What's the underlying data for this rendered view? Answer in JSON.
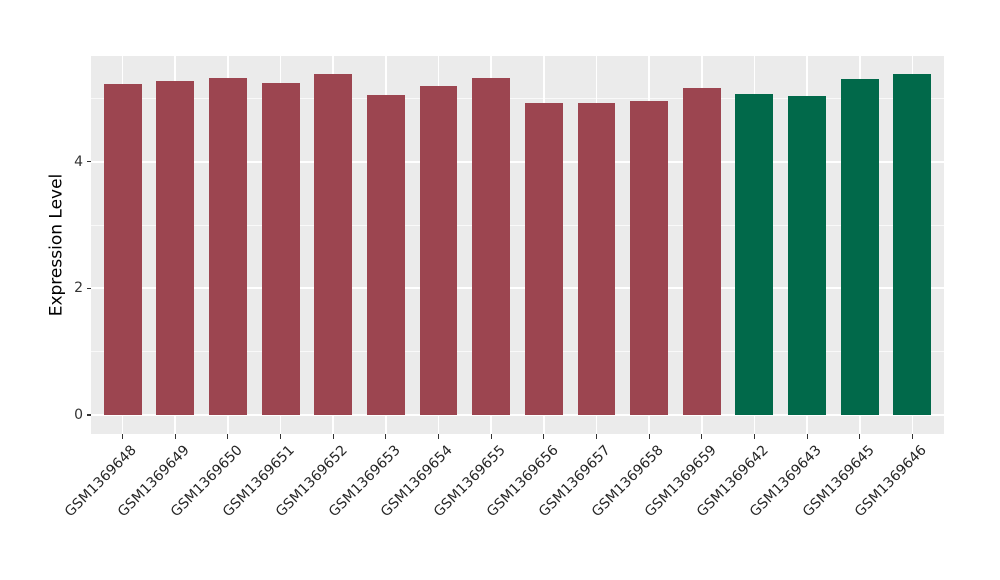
{
  "figure": {
    "background": "#FFFFFF",
    "panel_background": "#EBEBEB",
    "grid_color": "#FFFFFF",
    "axis_text_color": "#333333",
    "axis_title_color": "#000000",
    "tick_mark_color": "#333333"
  },
  "chart_data": {
    "type": "bar",
    "title": "",
    "xlabel": "",
    "ylabel": "Expression Level",
    "categories": [
      "GSM1369648",
      "GSM1369649",
      "GSM1369650",
      "GSM1369651",
      "GSM1369652",
      "GSM1369653",
      "GSM1369654",
      "GSM1369655",
      "GSM1369656",
      "GSM1369657",
      "GSM1369658",
      "GSM1369659",
      "GSM1369642",
      "GSM1369643",
      "GSM1369645",
      "GSM1369646"
    ],
    "values": [
      5.22,
      5.28,
      5.33,
      5.25,
      5.39,
      5.06,
      5.19,
      5.33,
      4.92,
      4.92,
      4.96,
      5.16,
      5.07,
      5.04,
      5.31,
      5.39
    ],
    "bar_groups": [
      0,
      0,
      0,
      0,
      0,
      0,
      0,
      0,
      0,
      0,
      0,
      0,
      1,
      1,
      1,
      1
    ],
    "group_colors": [
      "#9C4550",
      "#01694A"
    ],
    "ylim": [
      -0.3,
      5.67
    ],
    "yticks": [
      0,
      2,
      4
    ],
    "minor_yticks": [
      1,
      3,
      5
    ],
    "grid": true,
    "legend_position": "none",
    "x_label_rotation": 45
  }
}
